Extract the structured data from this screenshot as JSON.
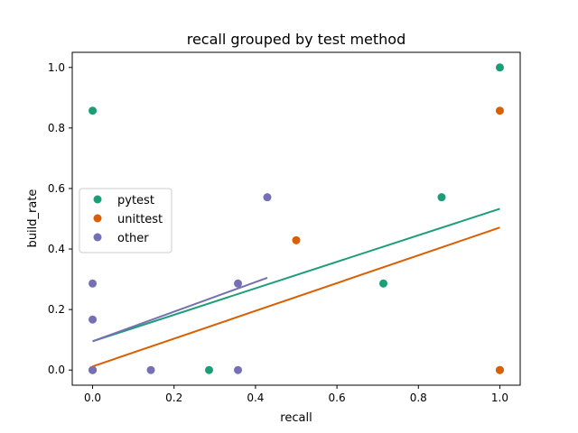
{
  "chart_data": {
    "type": "scatter",
    "title": "recall grouped by test method",
    "xlabel": "recall",
    "ylabel": "build_rate",
    "xlim": [
      -0.05,
      1.05
    ],
    "ylim": [
      -0.05,
      1.05
    ],
    "xticks": [
      0.0,
      0.2,
      0.4,
      0.6,
      0.8,
      1.0
    ],
    "yticks": [
      0.0,
      0.2,
      0.4,
      0.6,
      0.8,
      1.0
    ],
    "xtick_labels": [
      "0.0",
      "0.2",
      "0.4",
      "0.6",
      "0.8",
      "1.0"
    ],
    "ytick_labels": [
      "0.0",
      "0.2",
      "0.4",
      "0.6",
      "0.8",
      "1.0"
    ],
    "grid": false,
    "legend_position": "center-left",
    "series": [
      {
        "name": "pytest",
        "color": "#1b9e77",
        "points": [
          [
            0.0,
            0.857
          ],
          [
            0.0,
            0.0
          ],
          [
            0.286,
            0.0
          ],
          [
            0.714,
            0.286
          ],
          [
            0.857,
            0.571
          ],
          [
            1.0,
            1.0
          ],
          [
            1.0,
            0.0
          ]
        ],
        "fit": [
          [
            0.0,
            0.095
          ],
          [
            1.0,
            0.533
          ]
        ]
      },
      {
        "name": "unittest",
        "color": "#d95f02",
        "points": [
          [
            0.0,
            0.0
          ],
          [
            0.5,
            0.429
          ],
          [
            1.0,
            0.857
          ],
          [
            1.0,
            0.0
          ]
        ],
        "fit": [
          [
            0.0,
            0.012
          ],
          [
            1.0,
            0.471
          ]
        ]
      },
      {
        "name": "other",
        "color": "#7570b3",
        "points": [
          [
            0.0,
            0.286
          ],
          [
            0.0,
            0.167
          ],
          [
            0.0,
            0.0
          ],
          [
            0.143,
            0.0
          ],
          [
            0.357,
            0.286
          ],
          [
            0.357,
            0.0
          ],
          [
            0.429,
            0.571
          ]
        ],
        "fit": [
          [
            0.0,
            0.095
          ],
          [
            0.429,
            0.305
          ]
        ]
      }
    ]
  }
}
